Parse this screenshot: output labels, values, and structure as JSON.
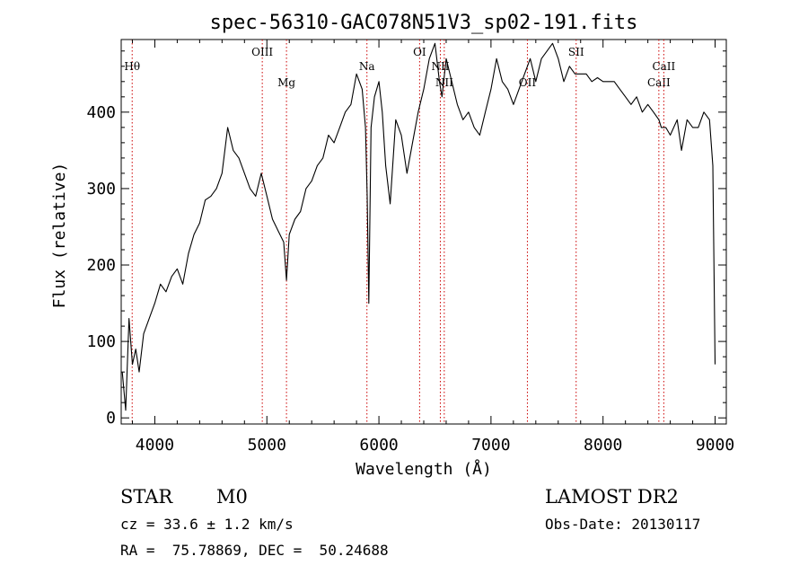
{
  "chart_data": {
    "type": "line",
    "title": "spec-56310-GAC078N51V3_sp02-191.fits",
    "xlabel": "Wavelength (Å)",
    "ylabel": "Flux (relative)",
    "xlim": [
      3700,
      9100
    ],
    "ylim": [
      -8,
      495
    ],
    "xticks": [
      4000,
      5000,
      6000,
      7000,
      8000,
      9000
    ],
    "yticks": [
      0,
      100,
      200,
      300,
      400
    ],
    "grid": false,
    "series": [
      {
        "x": [
          3710,
          3740,
          3770,
          3800,
          3830,
          3860,
          3900,
          3950,
          4000,
          4050,
          4100,
          4150,
          4200,
          4250,
          4300,
          4350,
          4400,
          4450,
          4500,
          4550,
          4600,
          4650,
          4700,
          4750,
          4800,
          4850,
          4900,
          4950,
          5000,
          5050,
          5100,
          5150,
          5175,
          5200,
          5250,
          5300,
          5350,
          5400,
          5450,
          5500,
          5550,
          5600,
          5650,
          5700,
          5750,
          5800,
          5850,
          5880,
          5895,
          5910,
          5930,
          5960,
          6000,
          6030,
          6060,
          6100,
          6150,
          6200,
          6250,
          6300,
          6350,
          6400,
          6450,
          6500,
          6540,
          6563,
          6600,
          6650,
          6700,
          6750,
          6800,
          6850,
          6900,
          6950,
          7000,
          7050,
          7100,
          7150,
          7200,
          7250,
          7300,
          7350,
          7400,
          7450,
          7500,
          7550,
          7600,
          7650,
          7700,
          7750,
          7800,
          7850,
          7900,
          7950,
          8000,
          8050,
          8100,
          8150,
          8200,
          8250,
          8300,
          8350,
          8400,
          8450,
          8498,
          8520,
          8542,
          8560,
          8600,
          8662,
          8700,
          8750,
          8800,
          8850,
          8900,
          8950,
          8980,
          9000
        ],
        "y": [
          60,
          10,
          130,
          70,
          90,
          60,
          110,
          130,
          150,
          175,
          165,
          185,
          195,
          175,
          215,
          240,
          255,
          285,
          290,
          300,
          320,
          380,
          350,
          340,
          320,
          300,
          290,
          320,
          290,
          260,
          245,
          230,
          180,
          240,
          260,
          270,
          300,
          310,
          330,
          340,
          370,
          360,
          380,
          400,
          410,
          450,
          430,
          380,
          290,
          150,
          380,
          420,
          440,
          400,
          330,
          280,
          390,
          370,
          320,
          360,
          400,
          430,
          470,
          490,
          440,
          420,
          470,
          440,
          410,
          390,
          400,
          380,
          370,
          400,
          430,
          470,
          440,
          430,
          410,
          430,
          450,
          470,
          440,
          470,
          480,
          490,
          470,
          440,
          460,
          450,
          450,
          450,
          440,
          445,
          440,
          440,
          440,
          430,
          420,
          410,
          420,
          400,
          410,
          400,
          390,
          380,
          380,
          380,
          370,
          390,
          350,
          390,
          380,
          380,
          400,
          390,
          330,
          70
        ]
      }
    ],
    "line_markers": [
      {
        "label": "Hθ",
        "wavelength": 3798,
        "label_row": "upper"
      },
      {
        "label": "OIII",
        "wavelength": 4959,
        "label_row": "top"
      },
      {
        "label": "Mg",
        "wavelength": 5175,
        "label_row": "lower"
      },
      {
        "label": "Na",
        "wavelength": 5893,
        "label_row": "upper"
      },
      {
        "label": "OI",
        "wavelength": 6363,
        "label_row": "top"
      },
      {
        "label": "NII",
        "wavelength": 6548,
        "label_row": "upper"
      },
      {
        "label": "NII",
        "wavelength": 6583,
        "label_row": "lower"
      },
      {
        "label": "OII",
        "wavelength": 7325,
        "label_row": "lower"
      },
      {
        "label": "SII",
        "wavelength": 7760,
        "label_row": "top"
      },
      {
        "label": "CaII",
        "wavelength": 8498,
        "label_row": "lower"
      },
      {
        "label": "CaII",
        "wavelength": 8542,
        "label_row": "upper"
      }
    ],
    "marker_color": "#cc0000",
    "line_color": "#000000"
  },
  "info": {
    "class": "STAR",
    "subclass": "M0",
    "survey": "LAMOST DR2",
    "cz": "cz = 33.6 ± 1.2 km/s",
    "obs_date": "Obs-Date: 20130117",
    "radec": "RA =  75.78869, DEC =  50.24688"
  }
}
